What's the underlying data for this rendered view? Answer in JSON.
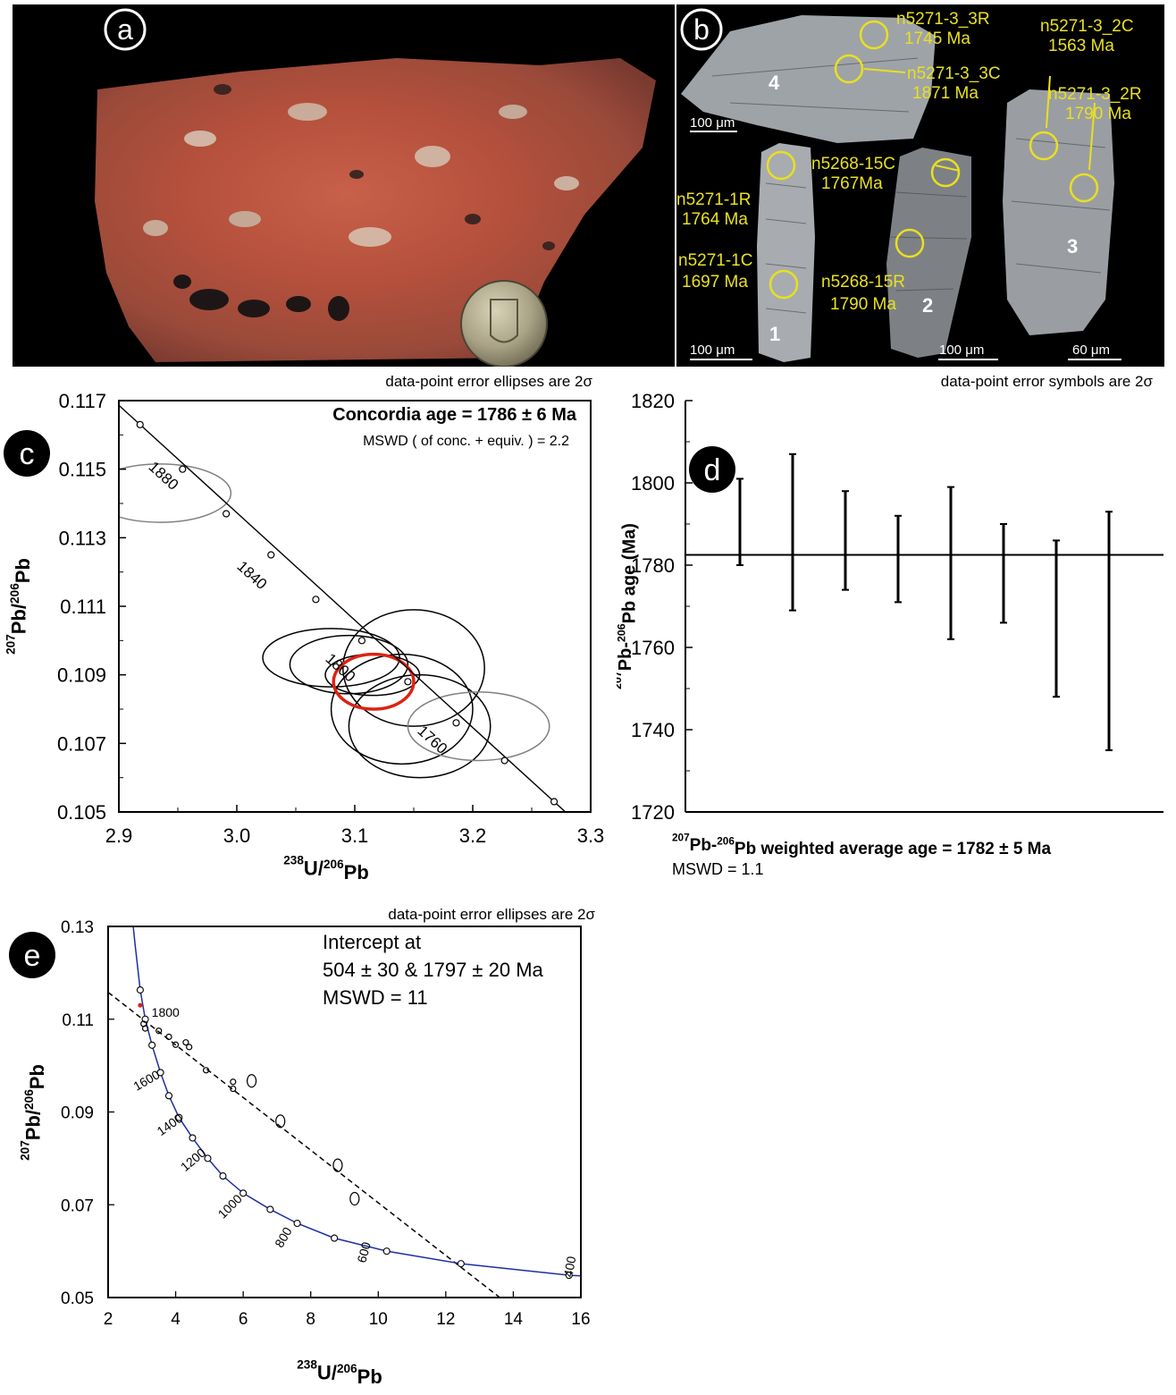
{
  "panel_labels": {
    "a": "a",
    "b": "b",
    "c": "c",
    "d": "d",
    "e": "e"
  },
  "panel_b": {
    "labels": [
      {
        "id": "n5271-3_3R",
        "text_sample": "n5271-3_3R",
        "text_age": "1745 Ma"
      },
      {
        "id": "n5271-3_3C",
        "text_sample": "n5271-3_3C",
        "text_age": "1871 Ma"
      },
      {
        "id": "n5271-3_2C",
        "text_sample": "n5271-3_2C",
        "text_age": "1563 Ma"
      },
      {
        "id": "n5271-3_2R",
        "text_sample": "n5271-3_2R",
        "text_age": "1790 Ma"
      },
      {
        "id": "n5268-15C",
        "text_sample": "n5268-15C",
        "text_age": "1767Ma"
      },
      {
        "id": "n5271-1R",
        "text_sample": "n5271-1R",
        "text_age": "1764 Ma"
      },
      {
        "id": "n5271-1C",
        "text_sample": "n5271-1C",
        "text_age": "1697 Ma"
      },
      {
        "id": "n5268-15R",
        "text_sample": "n5268-15R",
        "text_age": "1790 Ma"
      }
    ],
    "grain_numbers": [
      "1",
      "2",
      "3",
      "4"
    ],
    "scale_bars": [
      "100 μm",
      "100 μm",
      "100 μm",
      "60 μm"
    ],
    "label_color": "#e8e020"
  },
  "chart_data": [
    {
      "id": "c",
      "type": "scatter",
      "note": "data-point error ellipses are 2σ",
      "title": "Concordia age = 1786 ± 6 Ma",
      "subtitle": "MSWD ( of conc. + equiv. ) = 2.2",
      "xlabel": "238U/206Pb",
      "ylabel": "207Pb/206Pb",
      "xlim": [
        2.9,
        3.3
      ],
      "ylim": [
        0.105,
        0.117
      ],
      "xticks": [
        "2.9",
        "3.0",
        "3.1",
        "3.2",
        "3.3"
      ],
      "yticks": [
        "0.105",
        "0.107",
        "0.109",
        "0.111",
        "0.113",
        "0.115",
        "0.117"
      ],
      "concordia_points": [
        [
          2.918,
          0.1163
        ],
        [
          2.954,
          0.115
        ],
        [
          2.991,
          0.1137
        ],
        [
          3.029,
          0.1125
        ],
        [
          3.067,
          0.1112
        ],
        [
          3.106,
          0.11
        ],
        [
          3.145,
          0.1088
        ],
        [
          3.186,
          0.1076
        ],
        [
          3.227,
          0.1065
        ],
        [
          3.269,
          0.1053
        ]
      ],
      "concordia_labels": [
        "1880",
        "1840",
        "1800",
        "1760"
      ],
      "ellipses": [
        {
          "cx": 3.08,
          "cy": 0.1095,
          "rx": 0.058,
          "ry": 0.00085,
          "color": "#000000"
        },
        {
          "cx": 3.095,
          "cy": 0.1093,
          "rx": 0.05,
          "ry": 0.00085,
          "color": "#000000"
        },
        {
          "cx": 3.15,
          "cy": 0.1092,
          "rx": 0.06,
          "ry": 0.0017,
          "color": "#000000"
        },
        {
          "cx": 3.14,
          "cy": 0.108,
          "rx": 0.06,
          "ry": 0.0016,
          "color": "#000000"
        },
        {
          "cx": 3.155,
          "cy": 0.1075,
          "rx": 0.06,
          "ry": 0.0015,
          "color": "#000000"
        },
        {
          "cx": 3.115,
          "cy": 0.109,
          "rx": 0.04,
          "ry": 0.0006,
          "color": "#000000"
        },
        {
          "cx": 2.935,
          "cy": 0.1143,
          "rx": 0.06,
          "ry": 0.00085,
          "color": "#808080"
        },
        {
          "cx": 3.205,
          "cy": 0.1075,
          "rx": 0.06,
          "ry": 0.001,
          "color": "#808080"
        },
        {
          "cx": 3.116,
          "cy": 0.1088,
          "rx": 0.034,
          "ry": 0.0008,
          "color": "#dd2211",
          "concordia_age_ellipse": true
        }
      ]
    },
    {
      "id": "d",
      "type": "bar",
      "note": "data-point error symbols are 2σ",
      "title": "207Pb-206Pb weighted average age = 1782 ± 5 Ma",
      "subtitle": "MSWD = 1.1",
      "ylabel": "207Pb-206Pb age (Ma)",
      "ylim": [
        1720,
        1820
      ],
      "yticks": [
        "1720",
        "1740",
        "1760",
        "1780",
        "1800",
        "1820"
      ],
      "mean": 1782.5,
      "error_bars": [
        [
          1780,
          1801
        ],
        [
          1769,
          1807
        ],
        [
          1774,
          1798
        ],
        [
          1771,
          1792
        ],
        [
          1762,
          1799
        ],
        [
          1766,
          1790
        ],
        [
          1748,
          1786
        ],
        [
          1735,
          1793
        ]
      ]
    },
    {
      "id": "e",
      "type": "scatter",
      "note": "data-point error ellipses are 2σ",
      "annotation": [
        "Intercept at",
        "504 ± 30 & 1797 ± 20 Ma",
        "MSWD = 11"
      ],
      "xlabel": "238U/206Pb",
      "ylabel": "207Pb/206Pb",
      "xlim": [
        2,
        16
      ],
      "ylim": [
        0.05,
        0.13
      ],
      "xticks": [
        "2",
        "4",
        "6",
        "8",
        "10",
        "12",
        "14",
        "16"
      ],
      "yticks": [
        "0.05",
        "0.07",
        "0.09",
        "0.11",
        "0.13"
      ],
      "concordia_points": [
        [
          2.95,
          0.1163
        ],
        [
          3.1,
          0.11
        ],
        [
          3.3,
          0.1044
        ],
        [
          3.55,
          0.0985
        ],
        [
          3.8,
          0.0935
        ],
        [
          4.1,
          0.0888
        ],
        [
          4.5,
          0.0844
        ],
        [
          4.95,
          0.08
        ],
        [
          5.4,
          0.0762
        ],
        [
          6.0,
          0.0725
        ],
        [
          6.8,
          0.069
        ],
        [
          7.6,
          0.066
        ],
        [
          8.7,
          0.0628
        ],
        [
          10.25,
          0.06
        ],
        [
          12.45,
          0.0573
        ],
        [
          15.65,
          0.0548
        ]
      ],
      "concordia_labels": [
        "1800",
        "1600",
        "1400",
        "1200",
        "1000",
        "800",
        "600",
        "400"
      ],
      "discordia_line": [
        [
          2.0,
          0.1158
        ],
        [
          13.6,
          0.05
        ]
      ],
      "small_ellipses": [
        [
          3.05,
          0.109
        ],
        [
          3.1,
          0.108
        ],
        [
          3.5,
          0.1075
        ],
        [
          3.8,
          0.1062
        ],
        [
          4.0,
          0.1045
        ],
        [
          4.3,
          0.105
        ],
        [
          4.4,
          0.104
        ],
        [
          4.9,
          0.099
        ],
        [
          5.7,
          0.0965
        ],
        [
          5.7,
          0.095
        ],
        [
          6.25,
          0.0967
        ],
        [
          7.1,
          0.088
        ],
        [
          8.8,
          0.0785
        ],
        [
          9.3,
          0.0713
        ]
      ],
      "curve_color": "#1f2f9e"
    }
  ]
}
